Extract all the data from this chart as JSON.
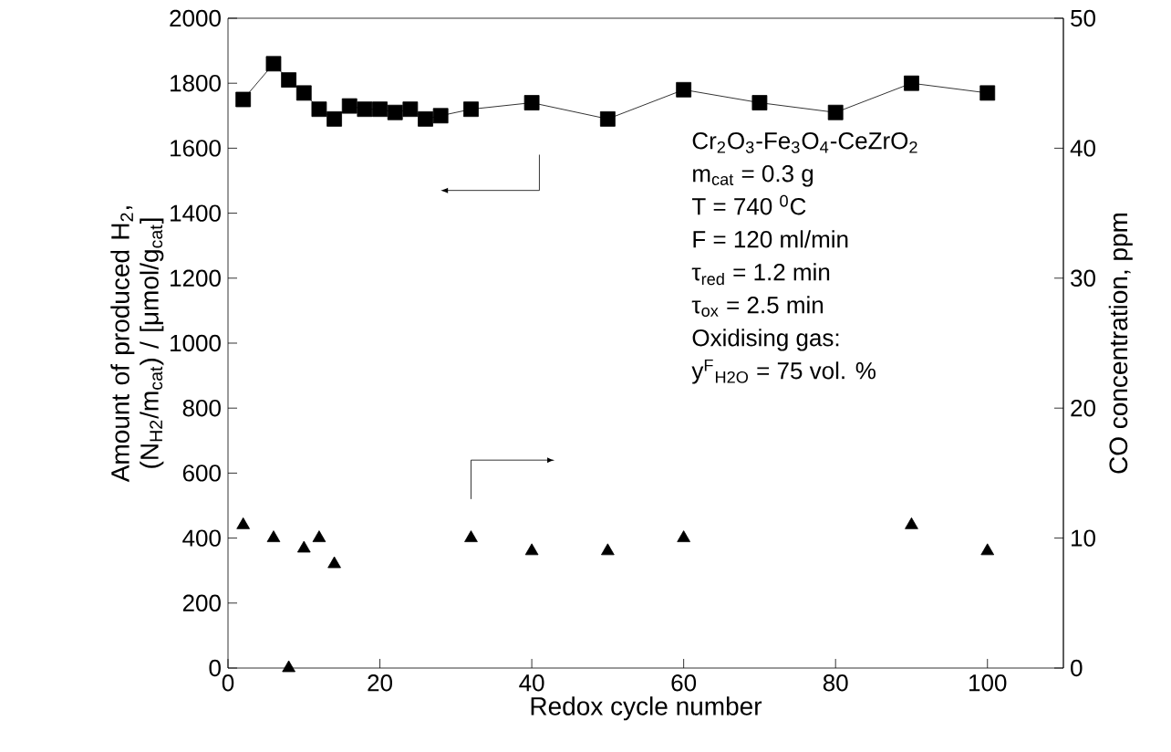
{
  "chart_data": {
    "type": "line",
    "xlabel": "Redox cycle number",
    "ylabel": "Amount of produced H$_{2}$, (N$_{H2}$/m$_{cat}$) / [μmol/g$_{cat}$]",
    "y2label": "CO concentration, ppm",
    "xlim": [
      0,
      110
    ],
    "xticks": [
      0,
      20,
      40,
      60,
      80,
      100
    ],
    "ylim": [
      0,
      2000
    ],
    "yticks": [
      0,
      200,
      400,
      600,
      800,
      1000,
      1200,
      1400,
      1600,
      1800,
      2000
    ],
    "y2lim": [
      0,
      50
    ],
    "y2ticks": [
      0,
      10,
      20,
      30,
      40,
      50
    ],
    "series": [
      {
        "color": "#000000",
        "marker": "square",
        "line_style": "solid",
        "x": [
          2,
          6,
          8,
          10,
          12,
          14,
          16,
          18,
          20,
          22,
          24,
          26,
          28,
          32,
          40,
          50,
          60,
          70,
          80,
          90,
          100
        ],
        "values": [
          1750,
          1860,
          1810,
          1770,
          1720,
          1690,
          1730,
          1720,
          1720,
          1710,
          1720,
          1690,
          1700,
          1720,
          1740,
          1690,
          1780,
          1740,
          1710,
          1800,
          1770
        ]
      },
      {
        "type": "scatter",
        "color": "#000000",
        "marker": "triangle",
        "axis": "y2",
        "x": [
          2,
          6,
          8,
          10,
          12,
          14,
          32,
          40,
          50,
          60,
          90,
          100
        ],
        "values": [
          11,
          10,
          0,
          9.2,
          10,
          8,
          10,
          9,
          9,
          10,
          11,
          9
        ]
      }
    ],
    "annotations": [
      "Cr$_{2}$O$_{3}$-Fe$_{3}$O$_{4}$-CeZrO$_{2}$",
      "m$_{cat}$ = 0.3 g",
      "T = 740 $^{0}$C",
      "F = 120 ml/min",
      "τ$_{red}$ = 1.2 min",
      "τ$_{ox}$ = 2.5 min",
      "Oxidising gas:",
      "y$^{F}$$_{H2O}$ = 75 vol. %"
    ],
    "grid": false
  }
}
